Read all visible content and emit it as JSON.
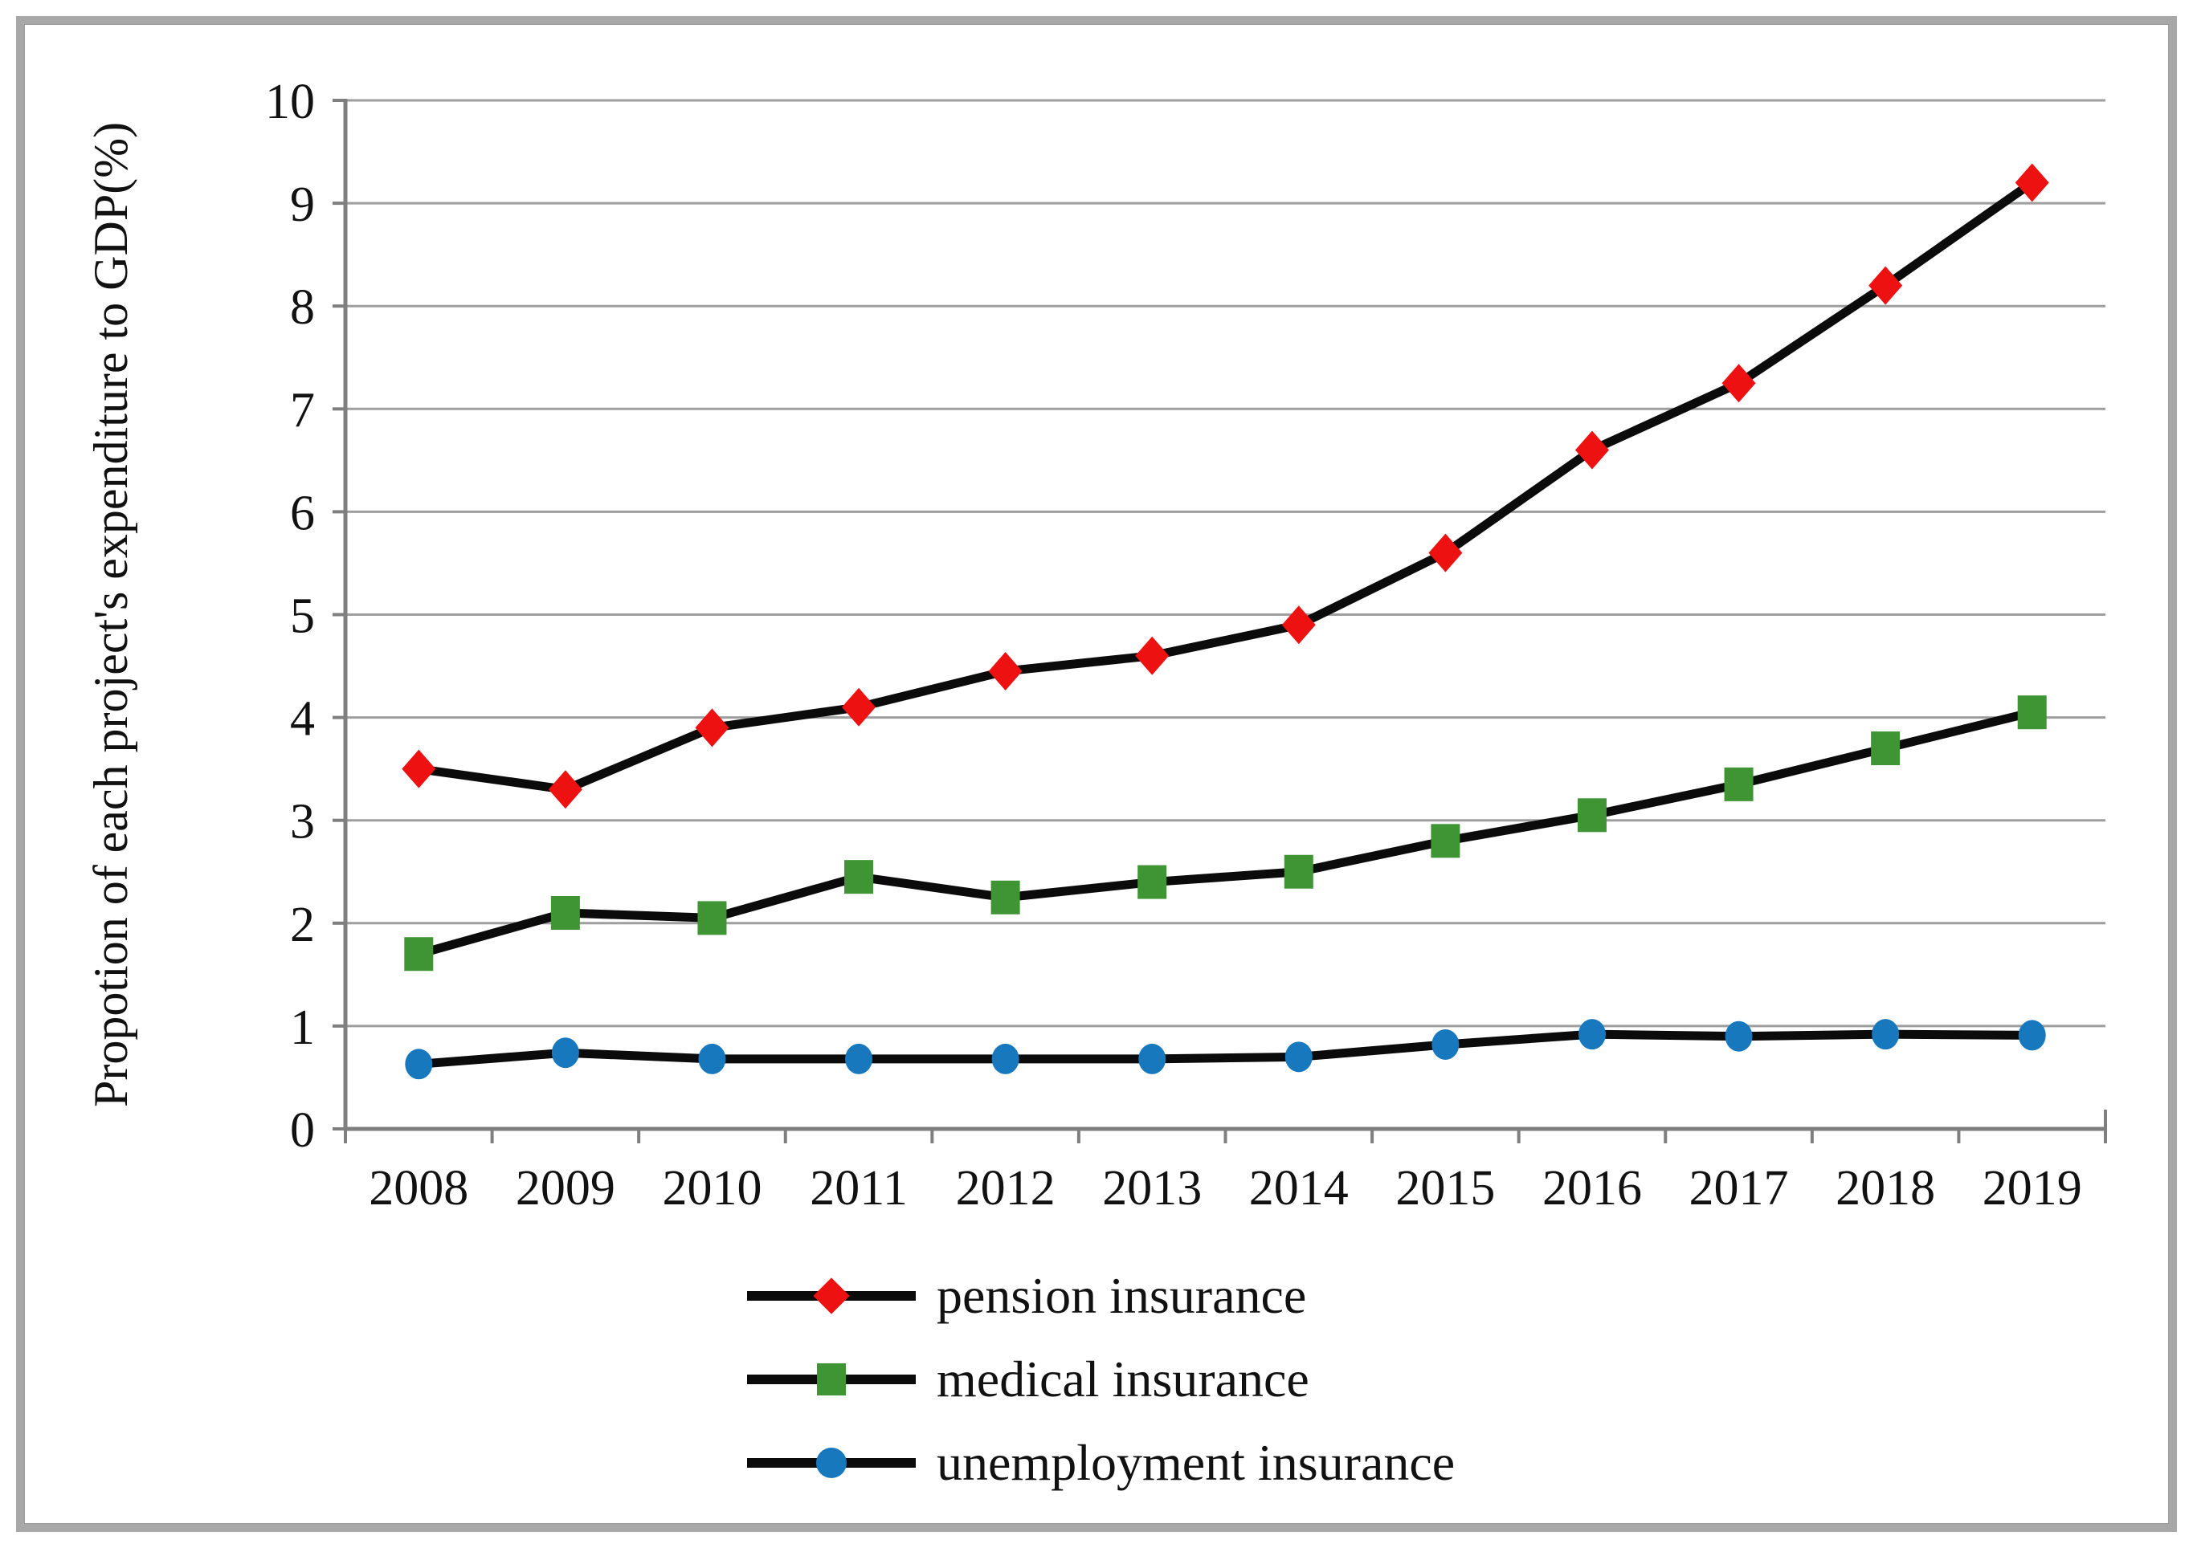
{
  "figure": {
    "background": "#ffffff",
    "border_color": "#a8a8a8"
  },
  "chart_data": {
    "type": "line",
    "title": "",
    "xlabel": "",
    "ylabel": "Propotion of each project's expenditure to GDP(%)",
    "ylim": [
      0,
      10
    ],
    "ytick_step": 1,
    "grid": true,
    "legend_position": "bottom-left",
    "categories": [
      "2008",
      "2009",
      "2010",
      "2011",
      "2012",
      "2013",
      "2014",
      "2015",
      "2016",
      "2017",
      "2018",
      "2019"
    ],
    "series": [
      {
        "name": "pension insurance",
        "marker": "diamond",
        "color": "#ed1111",
        "values": [
          3.5,
          3.3,
          3.9,
          4.1,
          4.45,
          4.6,
          4.9,
          5.6,
          6.6,
          7.25,
          8.2,
          9.2
        ]
      },
      {
        "name": "medical insurance",
        "marker": "square",
        "color": "#3f9434",
        "values": [
          1.7,
          2.1,
          2.05,
          2.45,
          2.25,
          2.4,
          2.5,
          2.8,
          3.05,
          3.35,
          3.7,
          4.05
        ]
      },
      {
        "name": "unemployment insurance",
        "marker": "circle",
        "color": "#1878be",
        "values": [
          0.63,
          0.74,
          0.68,
          0.68,
          0.68,
          0.68,
          0.7,
          0.82,
          0.92,
          0.9,
          0.92,
          0.91
        ]
      }
    ],
    "line_color": "#0b0b0b",
    "axis_color": "#7f7f7f",
    "gridline_color": "#9e9e9e",
    "tick_label_color": "#111111"
  }
}
